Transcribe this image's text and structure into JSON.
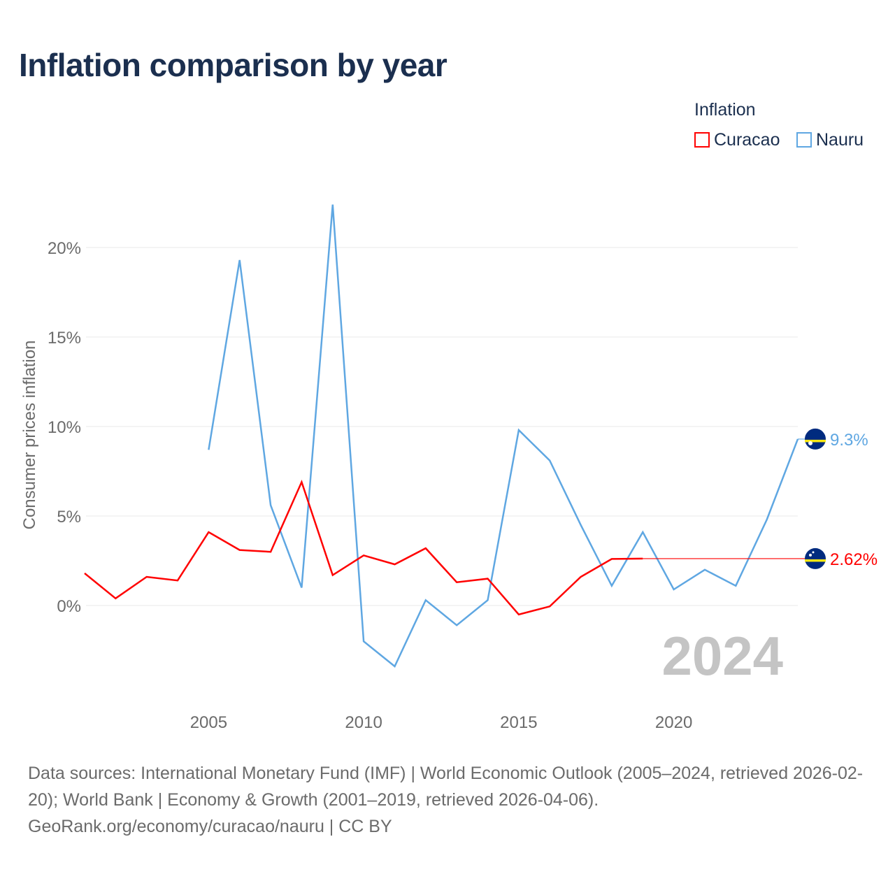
{
  "title": "Inflation comparison by year",
  "legend": {
    "title": "Inflation",
    "items": [
      {
        "label": "Curacao",
        "color": "#ff0000"
      },
      {
        "label": "Nauru",
        "color": "#5fa7e2"
      }
    ]
  },
  "footer": {
    "sources": "Data sources: International Monetary Fund (IMF) | World Economic Outlook (2005–2024, retrieved 2026-02-20); World Bank | Economy & Growth (2001–2019, retrieved 2026-04-06).",
    "credit": "GeoRank.org/economy/curacao/nauru | CC BY"
  },
  "chart_data": {
    "type": "line",
    "title": "Inflation comparison by year",
    "ylabel": "Consumer prices inflation",
    "xlabel": "",
    "year_watermark": "2024",
    "xlim": [
      2001,
      2024
    ],
    "ylim": [
      -5.3,
      22.5
    ],
    "x_ticks": [
      2005,
      2010,
      2015,
      2020
    ],
    "x_tick_labels": [
      "2005",
      "2010",
      "2015",
      "2020"
    ],
    "y_ticks": [
      0,
      5,
      10,
      15,
      20
    ],
    "y_tick_labels": [
      "0%",
      "5%",
      "10%",
      "15%",
      "20%"
    ],
    "series": [
      {
        "name": "Curacao",
        "color": "#ff0000",
        "x": [
          2001,
          2002,
          2003,
          2004,
          2005,
          2006,
          2007,
          2008,
          2009,
          2010,
          2011,
          2012,
          2013,
          2014,
          2015,
          2016,
          2017,
          2018,
          2019
        ],
        "values": [
          1.8,
          0.4,
          1.6,
          1.4,
          4.1,
          3.1,
          3.0,
          6.9,
          1.7,
          2.8,
          2.3,
          3.2,
          1.3,
          1.5,
          -0.5,
          -0.05,
          1.6,
          2.6,
          2.62
        ],
        "end_label": "2.62%",
        "end_value": 2.62
      },
      {
        "name": "Nauru",
        "color": "#5fa7e2",
        "x": [
          2005,
          2006,
          2007,
          2008,
          2009,
          2010,
          2011,
          2012,
          2013,
          2014,
          2015,
          2016,
          2017,
          2018,
          2019,
          2020,
          2021,
          2022,
          2023,
          2024
        ],
        "values": [
          8.7,
          19.3,
          5.6,
          1.0,
          22.4,
          -2.0,
          -3.4,
          0.3,
          -1.1,
          0.3,
          9.8,
          8.1,
          4.5,
          1.1,
          4.1,
          0.9,
          2.0,
          1.1,
          4.8,
          9.3
        ],
        "end_label": "9.3%",
        "end_value": 9.3
      }
    ]
  }
}
